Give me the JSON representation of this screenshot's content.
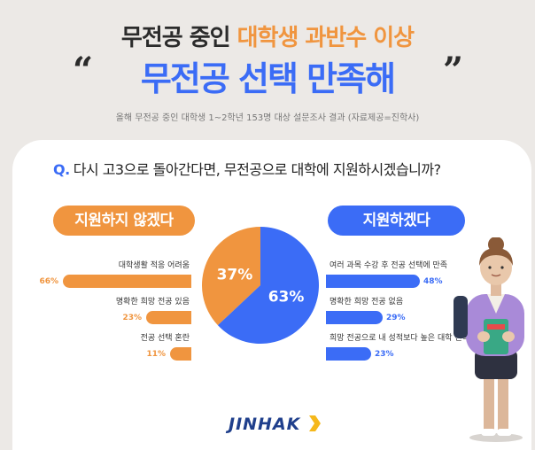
{
  "header": {
    "title_part1": "무전공 중인 ",
    "title_part2": "대학생 과반수 이상",
    "headline": "무전공 선택 만족해",
    "quote_open": "“",
    "quote_close": "”",
    "subtitle": "올해 무전공 중인 대학생 1~2학년 153명 대상 설문조사 결과 (자료제공=진학사)"
  },
  "question": {
    "prefix": "Q.",
    "text": "다시 고3으로 돌아간다면, 무전공으로 대학에 지원하시겠습니까?"
  },
  "colors": {
    "orange": "#f0953f",
    "blue": "#3b6cf6"
  },
  "chart_data": [
    {
      "type": "pie",
      "slices": [
        {
          "name": "지원하지 않겠다",
          "value": 37,
          "label": "37%",
          "color": "#f0953f"
        },
        {
          "name": "지원하겠다",
          "value": 63,
          "label": "63%",
          "color": "#3b6cf6"
        }
      ]
    },
    {
      "type": "bar",
      "orientation": "horizontal",
      "title": "지원하지 않겠다",
      "categories": [
        "대학생활 적응 어려움",
        "명확한 희망 전공 있음",
        "전공 선택 혼란"
      ],
      "values": [
        66,
        23,
        11
      ],
      "labels": [
        "66%",
        "23%",
        "11%"
      ],
      "color": "#f0953f"
    },
    {
      "type": "bar",
      "orientation": "horizontal",
      "title": "지원하겠다",
      "categories": [
        "여러 과목 수강 후 전공 선택에 만족",
        "명확한 희망 전공 없음",
        "희망 전공으로 내 성적보다 높은 대학 진학 가능"
      ],
      "values": [
        48,
        29,
        23
      ],
      "labels": [
        "48%",
        "29%",
        "23%"
      ],
      "color": "#3b6cf6"
    }
  ],
  "footer": {
    "logo": "JINHAK"
  }
}
